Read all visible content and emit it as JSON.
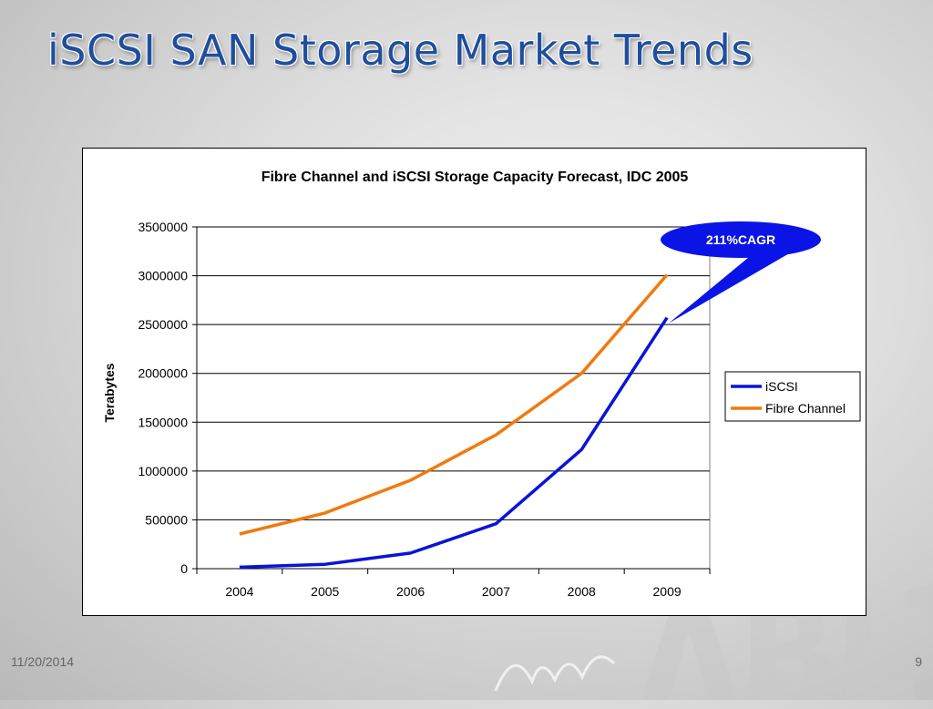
{
  "slide": {
    "title": "iSCSI SAN Storage Market Trends",
    "date": "11/20/2014",
    "page_number": "9"
  },
  "callout": {
    "label": "211%CAGR",
    "color": "#0a14e6"
  },
  "chart_data": {
    "type": "line",
    "title": "Fibre Channel and iSCSI Storage Capacity Forecast, IDC 2005",
    "xlabel": "",
    "ylabel": "Terabytes",
    "categories": [
      "2004",
      "2005",
      "2006",
      "2007",
      "2008",
      "2009"
    ],
    "ylim": [
      0,
      3500000
    ],
    "yticks": [
      "0",
      "500000",
      "1000000",
      "1500000",
      "2000000",
      "2500000",
      "3000000",
      "3500000"
    ],
    "grid": "horizontal",
    "legend": "right",
    "series": [
      {
        "name": "iSCSI",
        "color": "#0a14d6",
        "values": [
          15000,
          45000,
          160000,
          460000,
          1220000,
          2570000
        ]
      },
      {
        "name": "Fibre Channel",
        "color": "#f07a10",
        "values": [
          355000,
          570000,
          905000,
          1370000,
          2000000,
          3010000
        ]
      }
    ]
  }
}
